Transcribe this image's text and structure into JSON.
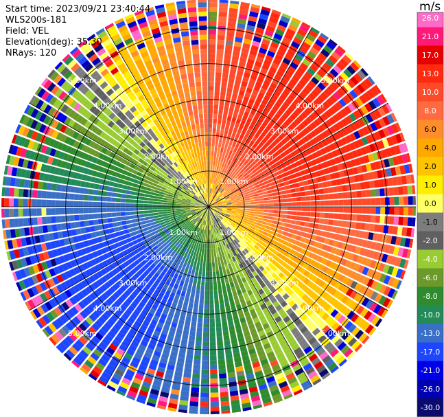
{
  "header": {
    "start_time": "Start time: 2023/09/21 23:40:44",
    "instrument": "WLS200s-181",
    "field": "Field: VEL",
    "elevation": "Elevation(deg): 35.30",
    "nrays": "NRays: 120"
  },
  "chart_data": {
    "type": "ppi-heatmap",
    "field": "VEL",
    "unit": "m/s",
    "range_rings_km": [
      1.0,
      2.0,
      3.0,
      4.0,
      5.0
    ],
    "range_ring_labels": [
      "1.00km",
      "2.00km",
      "3.00km",
      "4.00km",
      "5.00km"
    ],
    "max_range_km": 5.8,
    "n_rays": 120,
    "colorbar": {
      "ticks": [
        "26.0",
        "21.0",
        "17.0",
        "13.0",
        "10.0",
        "8.0",
        "6.0",
        "4.0",
        "2.0",
        "1.0",
        "0.0",
        "-1.0",
        "-2.0",
        "-4.0",
        "-6.0",
        "-8.0",
        "-10.0",
        "-13.0",
        "-17.0",
        "-21.0",
        "-26.0",
        "-30.0"
      ],
      "bounds": [
        30,
        26,
        21,
        17,
        13,
        10,
        8,
        6,
        4,
        2,
        1,
        0,
        -1,
        -2,
        -4,
        -6,
        -8,
        -10,
        -13,
        -17,
        -21,
        -26,
        -30
      ],
      "colors": [
        "#ff69c8",
        "#ff1a7a",
        "#e60000",
        "#ff2a10",
        "#ff4a2a",
        "#ff6a40",
        "#ff8e2a",
        "#ffa800",
        "#ffc400",
        "#ffee00",
        "#ffff66",
        "#7d7d7d",
        "#606060",
        "#99cc33",
        "#6b9a2a",
        "#2e8b2e",
        "#228b57",
        "#3a6fc8",
        "#1e46ff",
        "#0000e6",
        "#0000b4",
        "#0a0a70"
      ]
    },
    "pattern": {
      "approach_azimuth_deg": 230,
      "max_speed_ms": 15.0,
      "noise_start_km": 4.6
    }
  }
}
